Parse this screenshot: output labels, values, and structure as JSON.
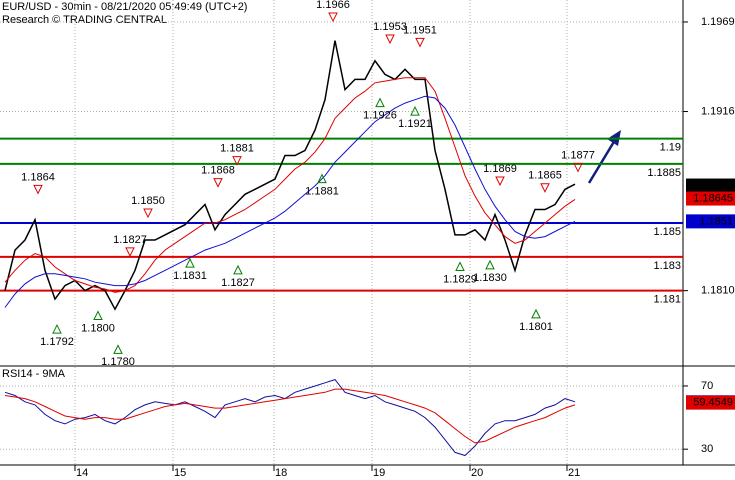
{
  "chart_data": [
    {
      "type": "line",
      "title": "EUR/USD - 30min - 08/21/2020 05:49:49 (UTC+2)",
      "subtitle": "Research © TRADING CENTRAL",
      "x": [
        0,
        1,
        2,
        3,
        4,
        5,
        6,
        7,
        8,
        9,
        10,
        11,
        12,
        13,
        14,
        15,
        16,
        17,
        18,
        19,
        20,
        21,
        22,
        23,
        24,
        25,
        26,
        27,
        28,
        29,
        30,
        31,
        32,
        33,
        34,
        35,
        36,
        37,
        38,
        39,
        40,
        41,
        42,
        43,
        44,
        45,
        46,
        47,
        48,
        49,
        50,
        51,
        52,
        53,
        54,
        55,
        56,
        57
      ],
      "series": [
        {
          "color": "#000000",
          "values": [
            1.181,
            1.1834,
            1.184,
            1.1852,
            1.1822,
            1.1805,
            1.1813,
            1.1816,
            1.181,
            1.1813,
            1.181,
            1.1799,
            1.181,
            1.1822,
            1.184,
            1.184,
            1.1843,
            1.1846,
            1.1849,
            1.1855,
            1.1861,
            1.1846,
            1.1855,
            1.1861,
            1.1867,
            1.187,
            1.1873,
            1.1876,
            1.189,
            1.189,
            1.1893,
            1.1905,
            1.1923,
            1.1958,
            1.1929,
            1.1935,
            1.1935,
            1.1946,
            1.1938,
            1.1935,
            1.1941,
            1.1935,
            1.1935,
            1.1893,
            1.187,
            1.1843,
            1.1843,
            1.1846,
            1.184,
            1.1855,
            1.184,
            1.1822,
            1.1843,
            1.1858,
            1.1858,
            1.1861,
            1.187,
            1.1873
          ]
        },
        {
          "color": "#e00000",
          "values": [
            1.1815,
            1.1822,
            1.1828,
            1.1832,
            1.183,
            1.1824,
            1.182,
            1.1816,
            1.1814,
            1.1812,
            1.1811,
            1.1809,
            1.181,
            1.1813,
            1.182,
            1.1828,
            1.1834,
            1.1838,
            1.1842,
            1.1846,
            1.185,
            1.185,
            1.1852,
            1.1855,
            1.1858,
            1.1862,
            1.1866,
            1.187,
            1.1876,
            1.1882,
            1.1886,
            1.1892,
            1.19,
            1.1912,
            1.1918,
            1.1924,
            1.1928,
            1.1933,
            1.1934,
            1.1935,
            1.1936,
            1.1936,
            1.1936,
            1.1928,
            1.1912,
            1.1895,
            1.1878,
            1.1866,
            1.1856,
            1.1849,
            1.1842,
            1.1838,
            1.184,
            1.1845,
            1.185,
            1.1855,
            1.186,
            1.1864
          ]
        },
        {
          "color": "#1010d0",
          "values": [
            1.18,
            1.1808,
            1.1814,
            1.1818,
            1.182,
            1.182,
            1.1819,
            1.1818,
            1.1817,
            1.1815,
            1.1814,
            1.1813,
            1.1813,
            1.1814,
            1.1816,
            1.1819,
            1.1822,
            1.1825,
            1.1828,
            1.1831,
            1.1834,
            1.1836,
            1.1838,
            1.1841,
            1.1844,
            1.1847,
            1.185,
            1.1853,
            1.1857,
            1.1862,
            1.1867,
            1.1872,
            1.1878,
            1.1886,
            1.1892,
            1.1898,
            1.1904,
            1.191,
            1.1914,
            1.1918,
            1.1921,
            1.1923,
            1.1925,
            1.1924,
            1.1918,
            1.1908,
            1.1895,
            1.1882,
            1.187,
            1.186,
            1.1852,
            1.1845,
            1.1842,
            1.1841,
            1.1842,
            1.1845,
            1.1848,
            1.1851
          ]
        }
      ],
      "xlim": [
        -0.5,
        67.8
      ],
      "ylim": [
        1.1766,
        1.1982
      ],
      "yticks": [
        1.1969,
        1.1916,
        {
          "value": 1.181,
          "label": "1.1810"
        }
      ],
      "grid": true,
      "levels": [
        {
          "value": 1.19,
          "label": "1.19",
          "color": "#008000"
        },
        {
          "value": 1.1885,
          "label": "1.1885",
          "color": "#008000"
        },
        {
          "value": 1.185,
          "label": "1.185",
          "color": "#0000cc"
        },
        {
          "value": 1.183,
          "label": "1.183",
          "color": "#e00000"
        },
        {
          "value": 1.181,
          "label": "1.181",
          "color": "#e00000"
        }
      ],
      "price_boxes": [
        {
          "value": 1.18722,
          "color": "#000000"
        },
        {
          "value": 1.18645,
          "color": "#e00000"
        },
        {
          "value": 1.1851,
          "color": "#0000cc"
        }
      ],
      "annotations": [
        {
          "x": 3.3,
          "value": 1.1864,
          "label": "1.1864",
          "marker": "down"
        },
        {
          "x": 12.5,
          "value": 1.1827,
          "label": "1.1827",
          "marker": "down"
        },
        {
          "x": 14.3,
          "value": 1.185,
          "label": "1.1850",
          "marker": "down"
        },
        {
          "x": 21.3,
          "value": 1.1868,
          "label": "1.1868",
          "marker": "down"
        },
        {
          "x": 23.2,
          "value": 1.1881,
          "label": "1.1881",
          "marker": "down"
        },
        {
          "x": 32.8,
          "value": 1.1966,
          "label": "1.1966",
          "marker": "down"
        },
        {
          "x": 38.5,
          "value": 1.1953,
          "label": "1.1953",
          "marker": "down"
        },
        {
          "x": 41.5,
          "value": 1.1951,
          "label": "1.1951",
          "marker": "down"
        },
        {
          "x": 49.5,
          "value": 1.1869,
          "label": "1.1869",
          "marker": "down"
        },
        {
          "x": 54,
          "value": 1.1865,
          "label": "1.1865",
          "marker": "down"
        },
        {
          "x": 57.3,
          "value": 1.1877,
          "label": "1.1877",
          "marker": "down"
        },
        {
          "x": 5.2,
          "value": 1.1792,
          "label": "1.1792",
          "marker": "up"
        },
        {
          "x": 9.3,
          "value": 1.18,
          "label": "1.1800",
          "marker": "up"
        },
        {
          "x": 11.3,
          "value": 1.178,
          "label": "1.1780",
          "marker": "up"
        },
        {
          "x": 18.5,
          "value": 1.1831,
          "label": "1.1831",
          "marker": "up"
        },
        {
          "x": 23.3,
          "value": 1.1827,
          "label": "1.1827",
          "marker": "up"
        },
        {
          "x": 31.7,
          "value": 1.1881,
          "label": "1.1881",
          "marker": "up"
        },
        {
          "x": 37.5,
          "value": 1.1926,
          "label": "1.1926",
          "marker": "up"
        },
        {
          "x": 41,
          "value": 1.1921,
          "label": "1.1921",
          "marker": "up"
        },
        {
          "x": 45.5,
          "value": 1.1829,
          "label": "1.1829",
          "marker": "up"
        },
        {
          "x": 48.5,
          "value": 1.183,
          "label": "1.1830",
          "marker": "up"
        },
        {
          "x": 53.1,
          "value": 1.1801,
          "label": "1.1801",
          "marker": "up"
        }
      ]
    },
    {
      "type": "line",
      "title": "RSI14 - 9MA",
      "x": [
        0,
        1,
        2,
        3,
        4,
        5,
        6,
        7,
        8,
        9,
        10,
        11,
        12,
        13,
        14,
        15,
        16,
        17,
        18,
        19,
        20,
        21,
        22,
        23,
        24,
        25,
        26,
        27,
        28,
        29,
        30,
        31,
        32,
        33,
        34,
        35,
        36,
        37,
        38,
        39,
        40,
        41,
        42,
        43,
        44,
        45,
        46,
        47,
        48,
        49,
        50,
        51,
        52,
        53,
        54,
        55,
        56,
        57
      ],
      "series": [
        {
          "color": "#1010a0",
          "values": [
            66,
            64,
            60,
            58,
            52,
            48,
            46,
            49,
            50,
            52,
            48,
            46,
            50,
            55,
            58,
            60,
            59,
            58,
            60,
            57,
            54,
            50,
            58,
            60,
            62,
            60,
            63,
            64,
            62,
            66,
            68,
            70,
            72,
            74,
            66,
            64,
            62,
            64,
            60,
            58,
            56,
            54,
            50,
            44,
            36,
            28,
            26,
            32,
            40,
            46,
            48,
            48,
            50,
            52,
            56,
            58,
            62,
            60
          ]
        },
        {
          "color": "#e00000",
          "values": [
            64,
            63,
            62,
            60,
            57,
            54,
            51,
            50,
            49,
            50,
            50,
            49,
            49,
            51,
            53,
            55,
            57,
            58,
            59,
            58,
            57,
            56,
            56,
            57,
            58,
            59,
            60,
            61,
            62,
            63,
            64,
            65,
            66,
            68,
            68,
            67,
            66,
            65,
            64,
            62,
            60,
            58,
            56,
            53,
            48,
            43,
            38,
            34,
            35,
            38,
            41,
            44,
            46,
            48,
            50,
            53,
            56,
            58
          ]
        }
      ],
      "xlim": [
        -0.5,
        67.8
      ],
      "ylim": [
        20,
        82
      ],
      "yticks": [
        70,
        30
      ],
      "xticks": [
        {
          "value": 7,
          "label": "14"
        },
        {
          "value": 16.8,
          "label": "15"
        },
        {
          "value": 26.9,
          "label": "18"
        },
        {
          "value": 36.7,
          "label": "19"
        },
        {
          "value": 46.5,
          "label": "20"
        },
        {
          "value": 56.2,
          "label": "21"
        }
      ],
      "grid": true,
      "price_boxes": [
        {
          "value": 59.6797,
          "color": "#0000cc"
        },
        {
          "value": 59.4549,
          "color": "#e00000"
        }
      ]
    }
  ]
}
